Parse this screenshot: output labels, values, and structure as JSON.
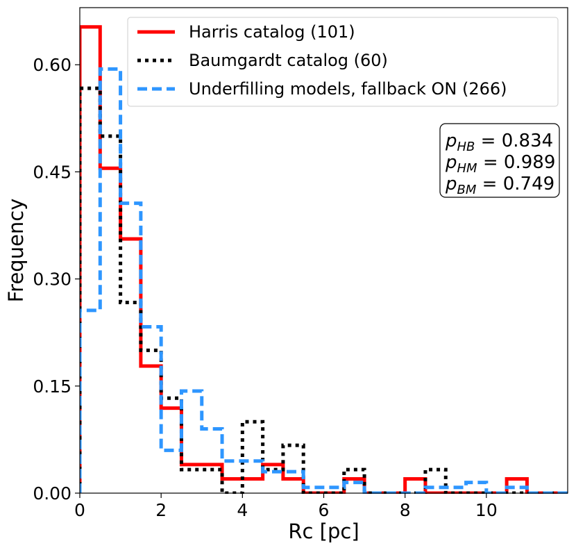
{
  "chart_data": {
    "type": "histogram-step",
    "xlabel": "Rc [pc]",
    "ylabel": "Frequency",
    "xlim": [
      0,
      12
    ],
    "ylim": [
      0,
      0.68
    ],
    "xticks": [
      0,
      2,
      4,
      6,
      8,
      10
    ],
    "xtick_labels": [
      "0",
      "2",
      "4",
      "6",
      "8",
      "10"
    ],
    "yticks": [
      0.0,
      0.15,
      0.3,
      0.45,
      0.6
    ],
    "ytick_labels": [
      "0.00",
      "0.15",
      "0.30",
      "0.45",
      "0.60"
    ],
    "bin_edges": [
      0,
      0.5,
      1,
      1.5,
      2,
      2.5,
      3,
      3.5,
      4,
      4.5,
      5,
      5.5,
      6,
      6.5,
      7,
      7.5,
      8,
      8.5,
      9,
      9.5,
      10,
      10.5,
      11,
      11.5,
      12
    ],
    "legend_position": "top-right",
    "series": [
      {
        "name": "Harris catalog (101)",
        "color": "#ff0000",
        "style": "solid",
        "values": [
          0.653,
          0.455,
          0.356,
          0.178,
          0.119,
          0.04,
          0.04,
          0.02,
          0.02,
          0.04,
          0.02,
          0.0,
          0.0,
          0.02,
          0.0,
          0.0,
          0.02,
          0.0,
          0.0,
          0.0,
          0.0,
          0.02,
          0.0,
          0.0
        ]
      },
      {
        "name": "Baumgardt catalog (60)",
        "color": "#000000",
        "style": "dotted",
        "values": [
          0.567,
          0.5,
          0.267,
          0.2,
          0.133,
          0.033,
          0.033,
          0.0,
          0.1,
          0.033,
          0.067,
          0.0,
          0.0,
          0.033,
          0.0,
          0.0,
          0.0,
          0.033,
          0.0,
          0.0,
          0.0,
          0.0,
          0.0,
          0.0
        ]
      },
      {
        "name": "Underfilling models, fallback ON (266)",
        "color": "#2e96ff",
        "style": "dashed",
        "values": [
          0.256,
          0.594,
          0.406,
          0.233,
          0.06,
          0.143,
          0.09,
          0.045,
          0.045,
          0.03,
          0.03,
          0.008,
          0.008,
          0.015,
          0.0,
          0.0,
          0.0,
          0.008,
          0.008,
          0.015,
          0.0,
          0.008,
          0.0,
          0.0
        ]
      }
    ],
    "annotation": {
      "lines": [
        {
          "sub": "HB",
          "value": "0.834"
        },
        {
          "sub": "HM",
          "value": "0.989"
        },
        {
          "sub": "BM",
          "value": "0.749"
        }
      ]
    }
  }
}
